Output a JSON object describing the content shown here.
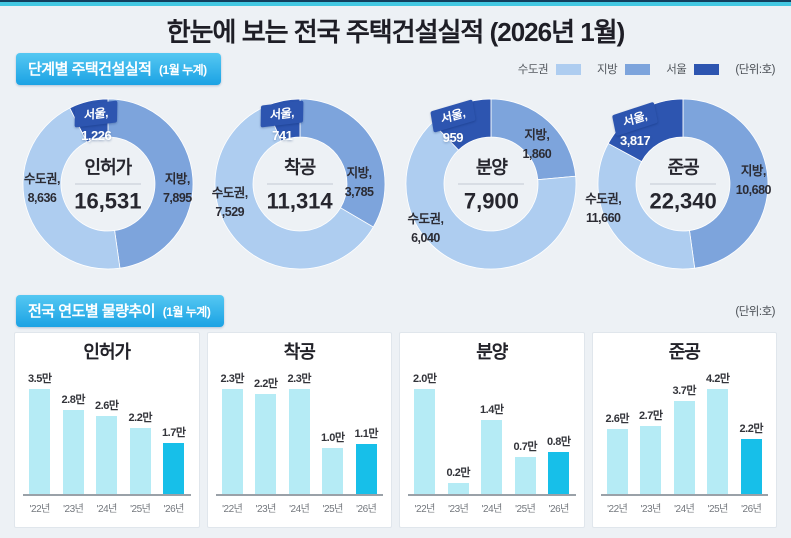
{
  "title": "한눈에 보는 전국 주택건설실적 (2026년 1월)",
  "section1": {
    "badge": "단계별 주택건설실적",
    "badge_sub": "(1월 누계)",
    "unit": "(단위:호)",
    "legend": [
      {
        "label": "수도권",
        "color": "#aecdf0"
      },
      {
        "label": "지방",
        "color": "#7da4dc"
      },
      {
        "label": "서울",
        "color": "#2d55b0"
      }
    ]
  },
  "section2": {
    "badge": "전국 연도별 물량추이",
    "badge_sub": "(1월 누계)",
    "unit": "(단위:호)"
  },
  "chart_data": {
    "donuts": [
      {
        "type": "pie",
        "title": "인허가",
        "total": 16531,
        "total_label": "16,531",
        "segments": [
          {
            "name": "수도권",
            "value": 8636,
            "value_label": "8,636"
          },
          {
            "name": "지방",
            "value": 7895,
            "value_label": "7,895"
          },
          {
            "name": "서울",
            "value": 1226,
            "value_label": "1,226"
          }
        ]
      },
      {
        "type": "pie",
        "title": "착공",
        "total": 11314,
        "total_label": "11,314",
        "segments": [
          {
            "name": "수도권",
            "value": 7529,
            "value_label": "7,529"
          },
          {
            "name": "지방",
            "value": 3785,
            "value_label": "3,785"
          },
          {
            "name": "서울",
            "value": 741,
            "value_label": "741"
          }
        ]
      },
      {
        "type": "pie",
        "title": "분양",
        "total": 7900,
        "total_label": "7,900",
        "segments": [
          {
            "name": "수도권",
            "value": 6040,
            "value_label": "6,040"
          },
          {
            "name": "지방",
            "value": 1860,
            "value_label": "1,860"
          },
          {
            "name": "서울",
            "value": 959,
            "value_label": "959"
          }
        ]
      },
      {
        "type": "pie",
        "title": "준공",
        "total": 22340,
        "total_label": "22,340",
        "segments": [
          {
            "name": "수도권",
            "value": 11660,
            "value_label": "11,660"
          },
          {
            "name": "지방",
            "value": 10680,
            "value_label": "10,680"
          },
          {
            "name": "서울",
            "value": 3817,
            "value_label": "3,817"
          }
        ]
      }
    ],
    "bars": [
      {
        "type": "bar",
        "title": "인허가",
        "categories": [
          "'22년",
          "'23년",
          "'24년",
          "'25년",
          "'26년"
        ],
        "values": [
          35000,
          28000,
          26000,
          22000,
          17000
        ],
        "value_labels": [
          "3.5만",
          "2.8만",
          "2.6만",
          "2.2만",
          "1.7만"
        ],
        "highlight_index": 4
      },
      {
        "type": "bar",
        "title": "착공",
        "categories": [
          "'22년",
          "'23년",
          "'24년",
          "'25년",
          "'26년"
        ],
        "values": [
          23000,
          22000,
          23000,
          10000,
          11000
        ],
        "value_labels": [
          "2.3만",
          "2.2만",
          "2.3만",
          "1.0만",
          "1.1만"
        ],
        "highlight_index": 4
      },
      {
        "type": "bar",
        "title": "분양",
        "categories": [
          "'22년",
          "'23년",
          "'24년",
          "'25년",
          "'26년"
        ],
        "values": [
          20000,
          2000,
          14000,
          7000,
          8000
        ],
        "value_labels": [
          "2.0만",
          "0.2만",
          "1.4만",
          "0.7만",
          "0.8만"
        ],
        "highlight_index": 4
      },
      {
        "type": "bar",
        "title": "준공",
        "categories": [
          "'22년",
          "'23년",
          "'24년",
          "'25년",
          "'26년"
        ],
        "values": [
          26000,
          27000,
          37000,
          42000,
          22000
        ],
        "value_labels": [
          "2.6만",
          "2.7만",
          "3.7만",
          "4.2만",
          "2.2만"
        ],
        "highlight_index": 4
      }
    ]
  }
}
